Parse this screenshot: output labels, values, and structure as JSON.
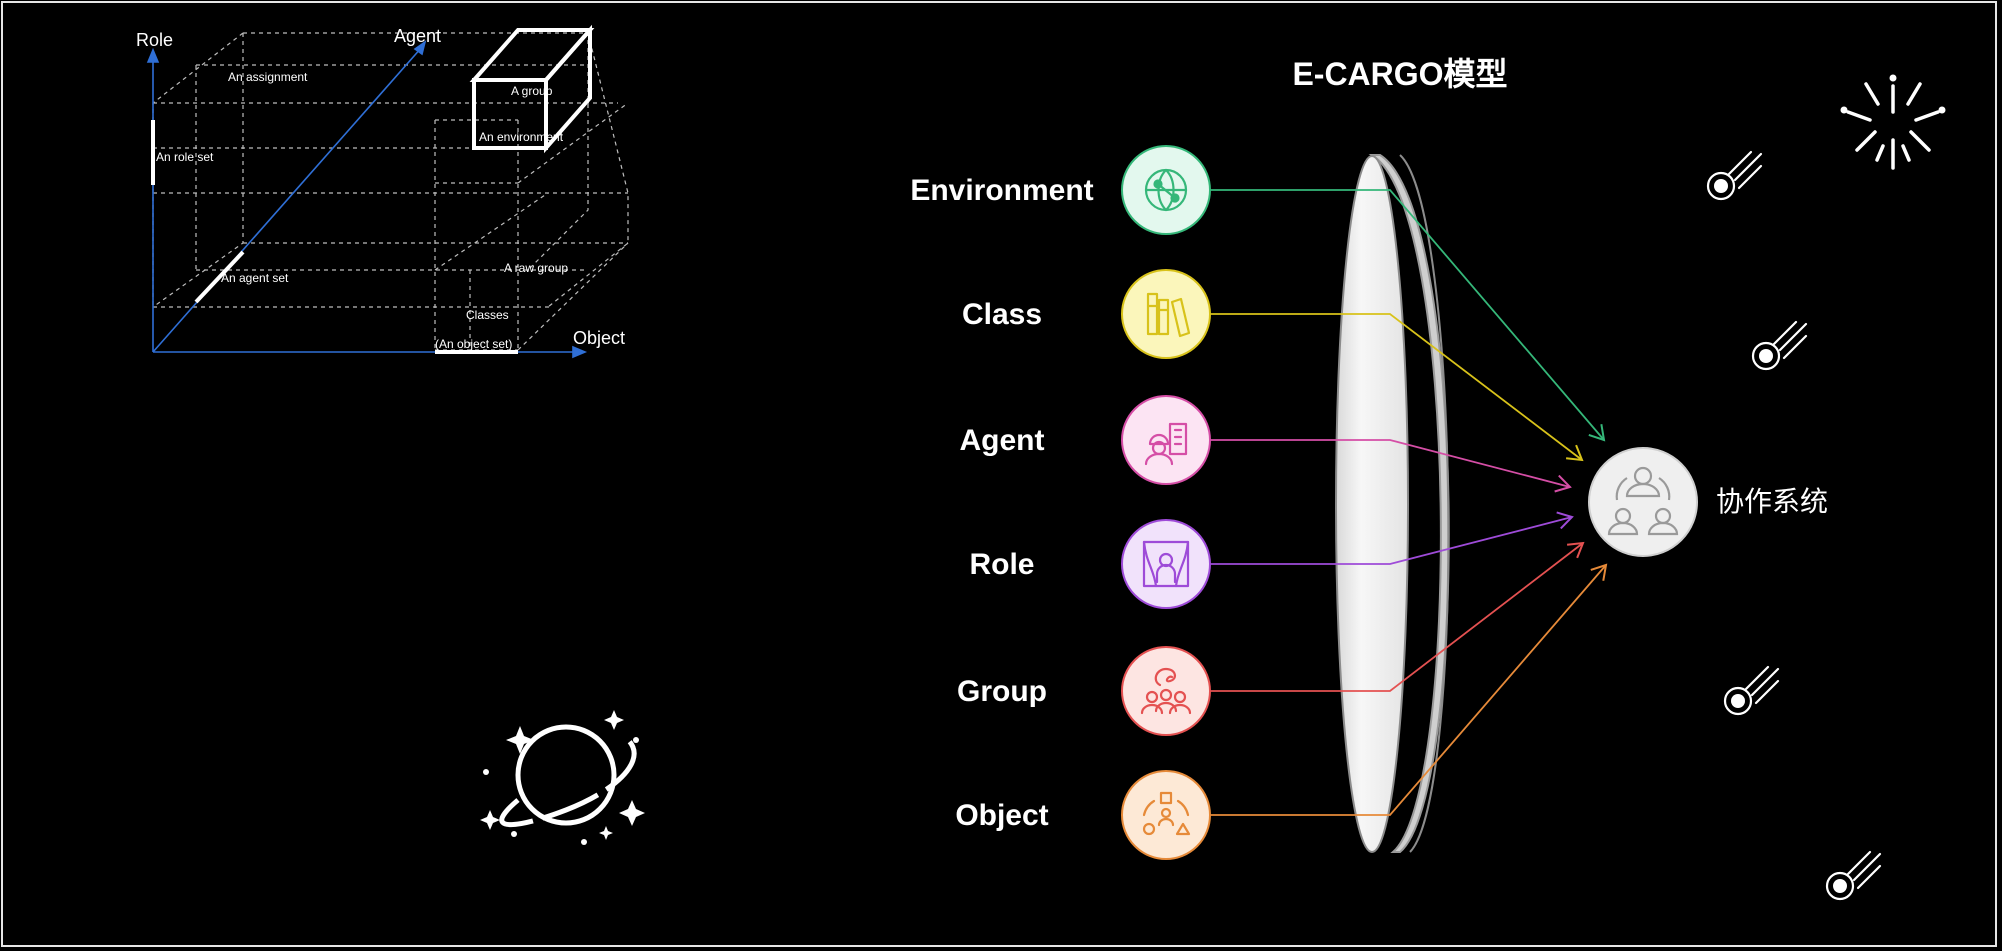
{
  "title": "E-CARGO模型",
  "target": {
    "label": "协作系统",
    "icon": "people-collaboration-icon"
  },
  "components": [
    {
      "key": "environment",
      "label": "Environment",
      "icon": "globe-network-icon",
      "color": "#35b779",
      "fill": "#e3f8ee"
    },
    {
      "key": "class",
      "label": "Class",
      "icon": "books-icon",
      "color": "#d8c21a",
      "fill": "#fbf6bb"
    },
    {
      "key": "agent",
      "label": "Agent",
      "icon": "worker-building-icon",
      "color": "#d54ea6",
      "fill": "#fce4f3"
    },
    {
      "key": "role",
      "label": "Role",
      "icon": "theater-person-icon",
      "color": "#9e4bd8",
      "fill": "#f1e2fb"
    },
    {
      "key": "group",
      "label": "Group",
      "icon": "team-group-icon",
      "color": "#e45151",
      "fill": "#fde5e2"
    },
    {
      "key": "object",
      "label": "Object",
      "icon": "shapes-icon",
      "color": "#e68a39",
      "fill": "#fde9d6"
    }
  ],
  "cube": {
    "axes": {
      "role": "Role",
      "agent": "Agent",
      "object": "Object"
    },
    "labels": {
      "assignment": "An assignment",
      "group": "A group",
      "environment": "An environment",
      "role_set": "An role set",
      "agent_set": "An agent set",
      "raw_group": "A raw group",
      "classes": "Classes",
      "object_set": "(An object set)"
    }
  },
  "decorations": [
    "fireworks-icon",
    "comet-icon",
    "comet-icon",
    "comet-icon",
    "comet-icon",
    "planet-icon"
  ],
  "colors": {
    "background": "#000000",
    "lens": "#f2f2f2",
    "axis": "#2f6fd6"
  }
}
